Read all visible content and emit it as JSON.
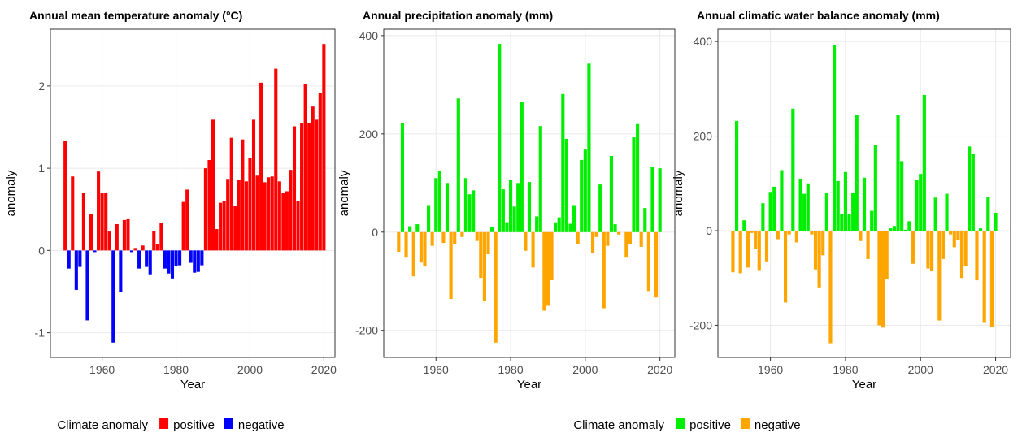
{
  "chart_data": [
    {
      "type": "bar",
      "title": "Annual mean temperature anomaly (°C)",
      "x_label": "Year",
      "y_label": "anomaly",
      "x": [
        1950,
        1951,
        1952,
        1953,
        1954,
        1955,
        1956,
        1957,
        1958,
        1959,
        1960,
        1961,
        1962,
        1963,
        1964,
        1965,
        1966,
        1967,
        1968,
        1969,
        1970,
        1971,
        1972,
        1973,
        1974,
        1975,
        1976,
        1977,
        1978,
        1979,
        1980,
        1981,
        1982,
        1983,
        1984,
        1985,
        1986,
        1987,
        1988,
        1989,
        1990,
        1991,
        1992,
        1993,
        1994,
        1995,
        1996,
        1997,
        1998,
        1999,
        2000,
        2001,
        2002,
        2003,
        2004,
        2005,
        2006,
        2007,
        2008,
        2009,
        2010,
        2011,
        2012,
        2013,
        2014,
        2015,
        2016,
        2017,
        2018,
        2019,
        2020
      ],
      "series": [
        {
          "name": "positive",
          "color": "#ff0000",
          "values": [
            1.33,
            null,
            0.9,
            null,
            null,
            0.7,
            null,
            0.44,
            null,
            0.96,
            0.7,
            0.7,
            0.23,
            null,
            0.32,
            null,
            0.37,
            0.38,
            null,
            0.03,
            null,
            0.06,
            null,
            null,
            0.24,
            0.08,
            0.33,
            null,
            null,
            null,
            null,
            null,
            0.59,
            0.74,
            null,
            null,
            null,
            null,
            1.0,
            1.1,
            1.59,
            0.26,
            0.58,
            0.6,
            0.87,
            1.37,
            0.54,
            0.86,
            1.35,
            0.84,
            1.12,
            1.59,
            0.91,
            2.04,
            0.83,
            0.89,
            0.9,
            2.21,
            0.84,
            0.7,
            0.72,
            0.98,
            1.51,
            0.6,
            1.55,
            2.02,
            1.55,
            1.75,
            1.59,
            1.92,
            2.51
          ]
        },
        {
          "name": "negative",
          "color": "#0000ff",
          "values": [
            null,
            -0.22,
            null,
            -0.48,
            -0.2,
            null,
            -0.85,
            null,
            -0.02,
            null,
            null,
            null,
            null,
            -1.12,
            null,
            -0.51,
            null,
            null,
            -0.02,
            null,
            -0.22,
            null,
            -0.2,
            -0.29,
            null,
            null,
            null,
            -0.22,
            -0.28,
            -0.34,
            -0.19,
            -0.18,
            null,
            null,
            -0.15,
            -0.27,
            -0.26,
            -0.18,
            null,
            null,
            null,
            null,
            null,
            null,
            null,
            null,
            null,
            null,
            null,
            null,
            null,
            null,
            null,
            null,
            null,
            null,
            null,
            null,
            null,
            null,
            null,
            null,
            null,
            null,
            null,
            null,
            null,
            null,
            null,
            null,
            null
          ]
        }
      ],
      "xlim": [
        1946,
        2023
      ],
      "xticks": [
        1960,
        1980,
        2000,
        2020
      ],
      "ylim": [
        -1.3,
        2.69
      ],
      "yticks": [
        -1,
        0,
        1,
        2
      ],
      "grid": true,
      "legend": {
        "title": "Climate anomaly",
        "position": "bottom"
      }
    },
    {
      "type": "bar",
      "title": "Annual precipitation anomaly (mm)",
      "x_label": "Year",
      "y_label": "anomaly",
      "x": [
        1950,
        1951,
        1952,
        1953,
        1954,
        1955,
        1956,
        1957,
        1958,
        1959,
        1960,
        1961,
        1962,
        1963,
        1964,
        1965,
        1966,
        1967,
        1968,
        1969,
        1970,
        1971,
        1972,
        1973,
        1974,
        1975,
        1976,
        1977,
        1978,
        1979,
        1980,
        1981,
        1982,
        1983,
        1984,
        1985,
        1986,
        1987,
        1988,
        1989,
        1990,
        1991,
        1992,
        1993,
        1994,
        1995,
        1996,
        1997,
        1998,
        1999,
        2000,
        2001,
        2002,
        2003,
        2004,
        2005,
        2006,
        2007,
        2008,
        2009,
        2010,
        2011,
        2012,
        2013,
        2014,
        2015,
        2016,
        2017,
        2018,
        2019,
        2020
      ],
      "series": [
        {
          "name": "positive",
          "color": "#00ee00",
          "values": [
            null,
            222,
            null,
            12,
            null,
            16,
            null,
            null,
            55,
            null,
            110,
            125,
            null,
            100,
            null,
            null,
            272,
            null,
            110,
            77,
            85,
            null,
            null,
            null,
            null,
            10,
            null,
            383,
            87,
            20,
            107,
            52,
            100,
            265,
            null,
            102,
            null,
            32,
            216,
            null,
            null,
            null,
            20,
            30,
            281,
            190,
            17,
            55,
            null,
            147,
            168,
            343,
            null,
            null,
            97,
            null,
            null,
            155,
            16,
            null,
            null,
            null,
            null,
            193,
            220,
            null,
            49,
            null,
            133,
            null,
            130
          ]
        },
        {
          "name": "negative",
          "color": "#ffa500",
          "values": [
            -40,
            null,
            -52,
            null,
            -90,
            null,
            -62,
            -70,
            null,
            -28,
            null,
            null,
            -22,
            null,
            -136,
            -25,
            null,
            -10,
            null,
            null,
            null,
            -18,
            -93,
            -140,
            -45,
            null,
            -225,
            null,
            null,
            null,
            null,
            null,
            null,
            null,
            -38,
            null,
            -72,
            null,
            null,
            -160,
            -150,
            -98,
            null,
            null,
            null,
            null,
            null,
            null,
            -25,
            null,
            null,
            null,
            -42,
            -10,
            null,
            -155,
            -28,
            null,
            null,
            -5,
            null,
            -52,
            -25,
            null,
            null,
            -30,
            null,
            -120,
            null,
            -133,
            null
          ]
        }
      ],
      "xlim": [
        1946,
        2024
      ],
      "xticks": [
        1960,
        1980,
        2000,
        2020
      ],
      "ylim": [
        -255,
        413
      ],
      "yticks": [
        -200,
        0,
        200,
        400
      ],
      "grid": true,
      "legend": {
        "title": "Climate anomaly",
        "position": "bottom"
      }
    },
    {
      "type": "bar",
      "title": "Annual climatic water balance anomaly (mm)",
      "x_label": "Year",
      "y_label": "anomaly",
      "x": [
        1950,
        1951,
        1952,
        1953,
        1954,
        1955,
        1956,
        1957,
        1958,
        1959,
        1960,
        1961,
        1962,
        1963,
        1964,
        1965,
        1966,
        1967,
        1968,
        1969,
        1970,
        1971,
        1972,
        1973,
        1974,
        1975,
        1976,
        1977,
        1978,
        1979,
        1980,
        1981,
        1982,
        1983,
        1984,
        1985,
        1986,
        1987,
        1988,
        1989,
        1990,
        1991,
        1992,
        1993,
        1994,
        1995,
        1996,
        1997,
        1998,
        1999,
        2000,
        2001,
        2002,
        2003,
        2004,
        2005,
        2006,
        2007,
        2008,
        2009,
        2010,
        2011,
        2012,
        2013,
        2014,
        2015,
        2016,
        2017,
        2018,
        2019,
        2020
      ],
      "series": [
        {
          "color": "#00ee00",
          "values": [
            null,
            232,
            null,
            22,
            null,
            null,
            null,
            null,
            58,
            null,
            82,
            93,
            null,
            128,
            null,
            null,
            258,
            null,
            110,
            78,
            100,
            null,
            null,
            null,
            null,
            80,
            null,
            393,
            105,
            35,
            124,
            35,
            80,
            244,
            null,
            112,
            null,
            42,
            182,
            null,
            null,
            null,
            5,
            10,
            245,
            147,
            2,
            20,
            null,
            108,
            120,
            287,
            null,
            null,
            70,
            null,
            null,
            78,
            null,
            null,
            null,
            null,
            null,
            178,
            163,
            null,
            5,
            null,
            72,
            null,
            38
          ]
        },
        {
          "color": "#ffa500",
          "values": [
            -88,
            null,
            -90,
            null,
            -78,
            -5,
            -38,
            -85,
            null,
            -65,
            null,
            null,
            -18,
            null,
            -152,
            -8,
            null,
            -25,
            null,
            null,
            null,
            -8,
            -82,
            -120,
            -52,
            null,
            -238,
            null,
            null,
            null,
            null,
            null,
            null,
            null,
            -22,
            null,
            -60,
            null,
            null,
            -200,
            -205,
            -103,
            null,
            null,
            null,
            null,
            null,
            null,
            -70,
            null,
            null,
            null,
            -80,
            -86,
            null,
            -190,
            -60,
            null,
            -8,
            -35,
            -20,
            -100,
            -75,
            null,
            null,
            -105,
            null,
            -195,
            null,
            -203,
            null
          ]
        }
      ],
      "xlim": [
        1946,
        2024
      ],
      "xticks": [
        1960,
        1980,
        2000,
        2020
      ],
      "ylim": [
        -268,
        426
      ],
      "yticks": [
        -200,
        0,
        200,
        400
      ],
      "grid": true
    }
  ]
}
